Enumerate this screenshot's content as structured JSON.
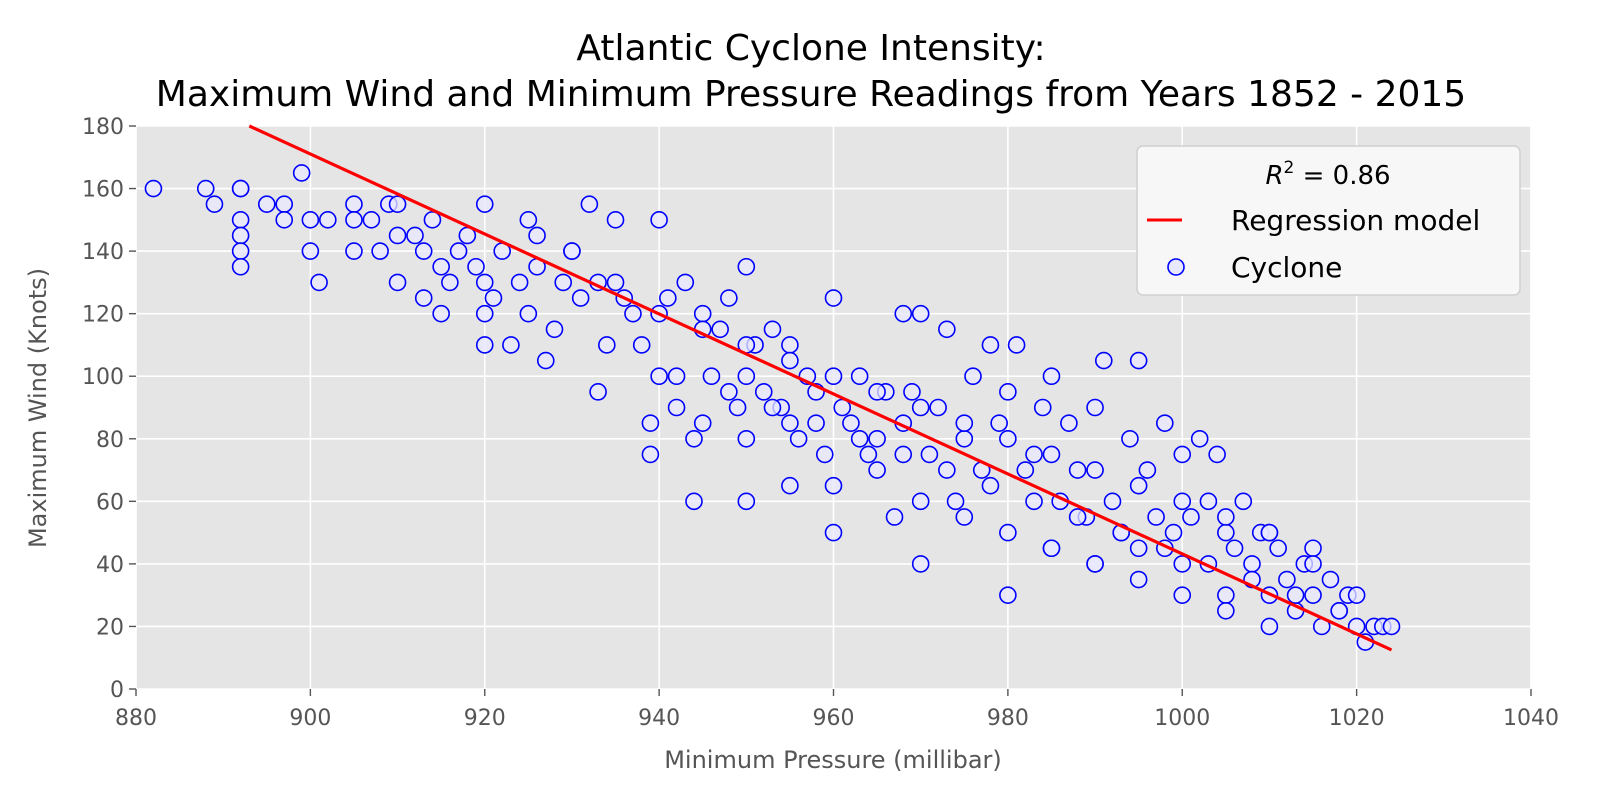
{
  "chart_data": {
    "type": "scatter",
    "title_lines": [
      "Atlantic Cyclone Intensity:",
      "Maximum Wind and Minimum Pressure Readings from Years 1852 - 2015"
    ],
    "xlabel": "Minimum Pressure (millibar)",
    "ylabel": "Maximum Wind (Knots)",
    "xlim": [
      880,
      1040
    ],
    "ylim": [
      0,
      180
    ],
    "x_ticks": [
      880,
      900,
      920,
      940,
      960,
      980,
      1000,
      1020,
      1040
    ],
    "y_ticks": [
      0,
      20,
      40,
      60,
      80,
      100,
      120,
      140,
      160,
      180
    ],
    "grid": true,
    "style": "ggplot",
    "colors": {
      "background": "#e5e5e5",
      "grid": "#ffffff",
      "points": "#0000ff",
      "regression": "#ff0000"
    },
    "legend": {
      "placement": "top-right",
      "r2_prefix": "R",
      "r2_exponent": "2",
      "r2_value": " = 0.86",
      "entries": [
        "Regression model",
        "Cyclone"
      ]
    },
    "series": [
      {
        "name": "Regression model",
        "kind": "line",
        "x": [
          893,
          1024
        ],
        "y": [
          180,
          12.5
        ]
      },
      {
        "name": "Cyclone",
        "kind": "scatter",
        "marker": "open-circle",
        "x": [
          882,
          888,
          889,
          892,
          892,
          892,
          892,
          892,
          892,
          895,
          897,
          897,
          899,
          900,
          900,
          901,
          902,
          905,
          905,
          905,
          907,
          908,
          909,
          910,
          910,
          910,
          912,
          913,
          913,
          914,
          915,
          915,
          916,
          917,
          918,
          919,
          920,
          920,
          920,
          920,
          921,
          922,
          923,
          924,
          925,
          925,
          926,
          926,
          927,
          928,
          929,
          930,
          931,
          932,
          933,
          933,
          934,
          935,
          936,
          937,
          938,
          939,
          939,
          940,
          940,
          941,
          942,
          943,
          944,
          944,
          945,
          946,
          947,
          948,
          949,
          950,
          950,
          950,
          951,
          952,
          953,
          954,
          955,
          955,
          956,
          957,
          958,
          959,
          960,
          960,
          961,
          962,
          963,
          964,
          965,
          966,
          967,
          968,
          968,
          969,
          970,
          970,
          971,
          972,
          973,
          974,
          975,
          976,
          977,
          978,
          979,
          980,
          980,
          981,
          982,
          983,
          984,
          985,
          985,
          986,
          987,
          988,
          989,
          990,
          990,
          991,
          992,
          993,
          994,
          995,
          995,
          996,
          997,
          998,
          999,
          1000,
          1000,
          1001,
          1002,
          1003,
          1004,
          1005,
          1005,
          1006,
          1007,
          1008,
          1009,
          1010,
          1010,
          1011,
          1012,
          1013,
          1014,
          1015,
          1015,
          1016,
          1017,
          1018,
          1019,
          1020,
          1020,
          1021,
          1022,
          1023,
          1024,
          930,
          935,
          940,
          945,
          950,
          955,
          960,
          965,
          970,
          975,
          980,
          985,
          990,
          995,
          1000,
          1005,
          1010,
          1015,
          945,
          950,
          955,
          960,
          965,
          970,
          975,
          980,
          985,
          990,
          995,
          1000,
          1005,
          1010,
          942,
          948,
          953,
          958,
          963,
          968,
          973,
          978,
          983,
          988,
          993,
          998,
          1003,
          1008,
          1013,
          1018
        ],
        "y": [
          160,
          160,
          155,
          160,
          150,
          145,
          140,
          135,
          160,
          155,
          155,
          150,
          165,
          150,
          140,
          130,
          150,
          155,
          150,
          140,
          150,
          140,
          155,
          145,
          130,
          155,
          145,
          125,
          140,
          150,
          120,
          135,
          130,
          140,
          145,
          135,
          155,
          130,
          120,
          110,
          125,
          140,
          110,
          130,
          150,
          120,
          135,
          145,
          105,
          115,
          130,
          140,
          125,
          155,
          95,
          130,
          110,
          150,
          125,
          120,
          110,
          85,
          75,
          150,
          100,
          125,
          90,
          130,
          60,
          80,
          120,
          100,
          115,
          125,
          90,
          135,
          100,
          60,
          110,
          95,
          115,
          90,
          65,
          110,
          80,
          100,
          95,
          75,
          125,
          50,
          90,
          85,
          100,
          75,
          80,
          95,
          55,
          120,
          85,
          95,
          120,
          40,
          75,
          90,
          115,
          60,
          80,
          100,
          70,
          110,
          85,
          95,
          30,
          110,
          70,
          75,
          90,
          100,
          45,
          60,
          85,
          70,
          55,
          90,
          40,
          105,
          60,
          50,
          80,
          105,
          45,
          70,
          55,
          85,
          50,
          75,
          40,
          55,
          80,
          60,
          75,
          50,
          30,
          45,
          60,
          40,
          50,
          30,
          50,
          45,
          35,
          25,
          40,
          30,
          45,
          20,
          35,
          25,
          30,
          20,
          30,
          15,
          20,
          20,
          20,
          140,
          130,
          120,
          115,
          110,
          105,
          100,
          95,
          90,
          85,
          80,
          75,
          70,
          65,
          60,
          55,
          50,
          40,
          85,
          80,
          85,
          65,
          70,
          60,
          55,
          50,
          45,
          40,
          35,
          30,
          25,
          20,
          100,
          95,
          90,
          85,
          80,
          75,
          70,
          65,
          60,
          55,
          50,
          45,
          40,
          35,
          30,
          25
        ]
      }
    ]
  }
}
